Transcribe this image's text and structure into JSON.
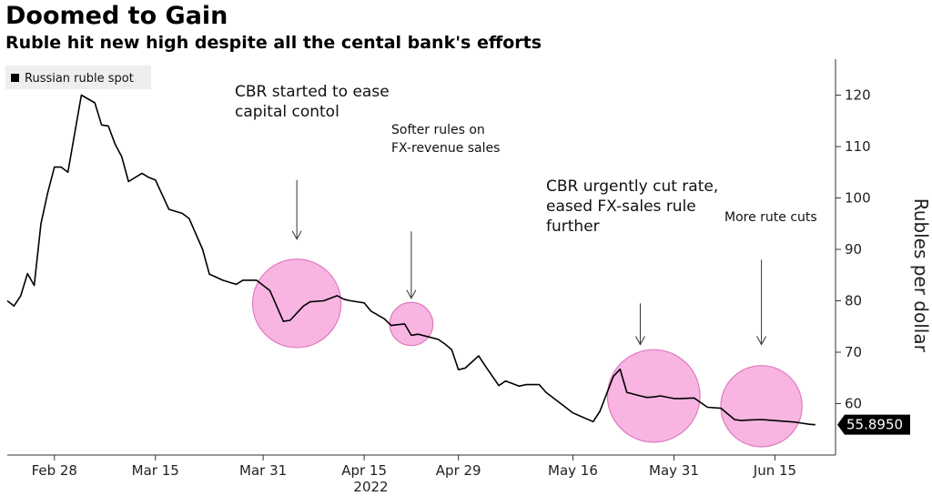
{
  "chart_data": {
    "type": "line",
    "title": "Doomed to Gain",
    "subtitle": "Ruble hit new high despite all the cental bank's efforts",
    "ylabel": "Rubles per dollar",
    "x_tick_labels": [
      "Feb 28",
      "Mar 15",
      "Mar 31",
      "Apr 15",
      "Apr 29",
      "May 16",
      "May 31",
      "Jun 15"
    ],
    "x_tick_dates": [
      "2022-02-28",
      "2022-03-15",
      "2022-03-31",
      "2022-04-15",
      "2022-04-29",
      "2022-05-16",
      "2022-05-31",
      "2022-06-15"
    ],
    "year_label": "2022",
    "y_ticks": [
      60,
      70,
      80,
      90,
      100,
      110,
      120
    ],
    "ylim": [
      50,
      127
    ],
    "xlim": [
      "2022-02-21",
      "2022-06-24"
    ],
    "grid": false,
    "legend": {
      "position": "top-left",
      "entries": [
        "Russian ruble spot"
      ]
    },
    "last_value_label": "55.8950",
    "series": [
      {
        "name": "Russian ruble spot",
        "color": "#000000",
        "x": [
          "2022-02-21",
          "2022-02-22",
          "2022-02-23",
          "2022-02-24",
          "2022-02-25",
          "2022-02-26",
          "2022-02-27",
          "2022-02-28",
          "2022-03-01",
          "2022-03-02",
          "2022-03-04",
          "2022-03-06",
          "2022-03-07",
          "2022-03-08",
          "2022-03-09",
          "2022-03-10",
          "2022-03-11",
          "2022-03-13",
          "2022-03-14",
          "2022-03-15",
          "2022-03-17",
          "2022-03-19",
          "2022-03-20",
          "2022-03-22",
          "2022-03-23",
          "2022-03-25",
          "2022-03-27",
          "2022-03-28",
          "2022-03-30",
          "2022-04-01",
          "2022-04-03",
          "2022-04-04",
          "2022-04-06",
          "2022-04-07",
          "2022-04-09",
          "2022-04-11",
          "2022-04-12",
          "2022-04-13",
          "2022-04-15",
          "2022-04-16",
          "2022-04-18",
          "2022-04-19",
          "2022-04-21",
          "2022-04-22",
          "2022-04-23",
          "2022-04-26",
          "2022-04-27",
          "2022-04-28",
          "2022-04-29",
          "2022-04-30",
          "2022-05-02",
          "2022-05-03",
          "2022-05-05",
          "2022-05-06",
          "2022-05-08",
          "2022-05-09",
          "2022-05-11",
          "2022-05-12",
          "2022-05-14",
          "2022-05-16",
          "2022-05-19",
          "2022-05-20",
          "2022-05-22",
          "2022-05-23",
          "2022-05-24",
          "2022-05-26",
          "2022-05-27",
          "2022-05-28",
          "2022-05-29",
          "2022-05-31",
          "2022-06-01",
          "2022-06-03",
          "2022-06-05",
          "2022-06-07",
          "2022-06-09",
          "2022-06-10",
          "2022-06-11",
          "2022-06-13",
          "2022-06-14",
          "2022-06-16",
          "2022-06-18",
          "2022-06-19",
          "2022-06-20",
          "2022-06-21"
        ],
        "values": [
          80.0,
          79.0,
          81.0,
          85.3,
          83.0,
          95.0,
          101.0,
          106.0,
          106.0,
          105.0,
          120.0,
          118.5,
          114.2,
          114.0,
          110.5,
          108.0,
          103.2,
          104.8,
          104.0,
          103.5,
          97.8,
          97.0,
          96.0,
          90.0,
          85.2,
          84.0,
          83.2,
          84.0,
          84.0,
          82.0,
          76.0,
          76.2,
          79.0,
          79.8,
          80.0,
          81.0,
          80.3,
          80.0,
          79.6,
          78.0,
          76.5,
          75.2,
          75.5,
          73.3,
          73.5,
          72.5,
          71.6,
          70.5,
          66.6,
          66.9,
          69.3,
          67.3,
          63.5,
          64.4,
          63.4,
          63.7,
          63.7,
          62.2,
          60.2,
          58.2,
          56.5,
          58.5,
          65.3,
          66.7,
          62.2,
          61.5,
          61.2,
          61.3,
          61.5,
          61.0,
          61.0,
          61.1,
          59.3,
          59.1,
          56.9,
          56.7,
          56.8,
          56.9,
          56.8,
          56.6,
          56.4,
          56.2,
          56.0,
          55.9
        ]
      }
    ],
    "annotations": [
      {
        "lines": [
          "CBR started to ease",
          "capital contol"
        ],
        "circle_center": {
          "x": "2022-04-05",
          "y": 79.5
        },
        "circle_radius_rubles": 8.6,
        "arrow_x": "2022-04-05",
        "arrow_top": 103.5,
        "arrow_bottom": 92
      },
      {
        "lines": [
          "Softer rules on",
          "FX-revenue sales"
        ],
        "circle_center": {
          "x": "2022-04-22",
          "y": 75.5
        },
        "circle_radius_rubles": 4.2,
        "arrow_x": "2022-04-22",
        "arrow_top": 93.5,
        "arrow_bottom": 80.5
      },
      {
        "lines": [
          "CBR urgently cut rate,",
          "eased FX-sales rule",
          "further"
        ],
        "circle_center": {
          "x": "2022-05-28",
          "y": 61.5
        },
        "circle_radius_rubles": 9.0,
        "arrow_x": "2022-05-26",
        "arrow_top": 79.5,
        "arrow_bottom": 71.5
      },
      {
        "lines": [
          "More rute cuts"
        ],
        "circle_center": {
          "x": "2022-06-13",
          "y": 59.5
        },
        "circle_radius_rubles": 7.9,
        "arrow_x": "2022-06-13",
        "arrow_top": 88,
        "arrow_bottom": 71.5
      }
    ],
    "colors": {
      "line": "#000000",
      "circle_fill": "#f7a8dc",
      "circle_stroke": "#e07ac0",
      "badge_bg": "#000000",
      "badge_text": "#ffffff",
      "legend_bg": "#eeeeee"
    }
  }
}
